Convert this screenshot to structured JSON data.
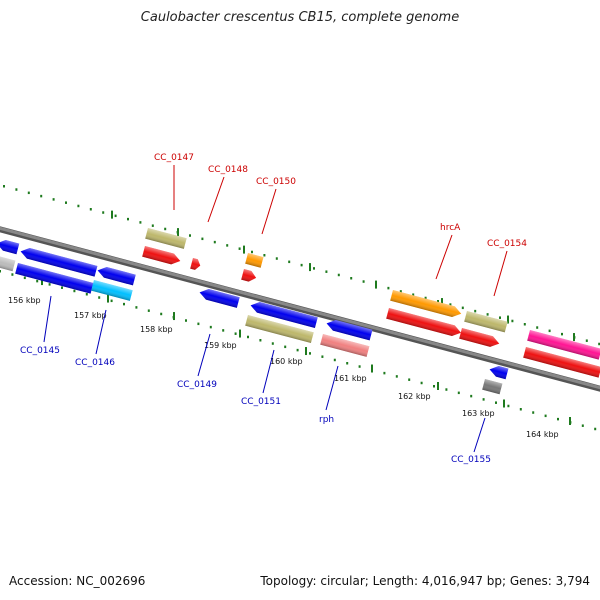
{
  "title": "Caulobacter crescentus CB15, complete genome",
  "footer": {
    "accession": "Accession: NC_002696",
    "summary": "Topology: circular; Length: 4,016,947 bp; Genes: 3,794"
  },
  "colors": {
    "backbone": "#888888",
    "tick": "#1e7a1e",
    "forward_label": "#cc0000",
    "reverse_label": "#0000bb"
  },
  "scale_ticks": [
    {
      "label": "156 kbp",
      "kbp": 156
    },
    {
      "label": "157 kbp",
      "kbp": 157
    },
    {
      "label": "158 kbp",
      "kbp": 158
    },
    {
      "label": "159 kbp",
      "kbp": 159
    },
    {
      "label": "160 kbp",
      "kbp": 160
    },
    {
      "label": "161 kbp",
      "kbp": 161
    },
    {
      "label": "162 kbp",
      "kbp": 162
    },
    {
      "label": "163 kbp",
      "kbp": 163
    },
    {
      "label": "164 kbp",
      "kbp": 164
    }
  ],
  "gene_labels": [
    {
      "name": "CC_0145",
      "strand": "reverse"
    },
    {
      "name": "CC_0146",
      "strand": "reverse"
    },
    {
      "name": "CC_0147",
      "strand": "forward"
    },
    {
      "name": "CC_0148",
      "strand": "forward"
    },
    {
      "name": "CC_0149",
      "strand": "reverse"
    },
    {
      "name": "CC_0150",
      "strand": "forward"
    },
    {
      "name": "CC_0151",
      "strand": "reverse"
    },
    {
      "name": "rph",
      "strand": "reverse"
    },
    {
      "name": "hrcA",
      "strand": "forward"
    },
    {
      "name": "CC_0154",
      "strand": "forward"
    },
    {
      "name": "CC_0155",
      "strand": "reverse"
    }
  ],
  "features": [
    {
      "strand": "forward",
      "color": "#bdb76b",
      "shape": "box"
    },
    {
      "strand": "forward",
      "color": "#ee1111",
      "shape": "arrow"
    },
    {
      "strand": "forward",
      "color": "#ee1111",
      "shape": "arrow"
    },
    {
      "strand": "forward",
      "color": "#ff9900",
      "shape": "box"
    },
    {
      "strand": "forward",
      "color": "#ee1111",
      "shape": "arrow"
    },
    {
      "strand": "forward",
      "color": "#ff9900",
      "shape": "arrow"
    },
    {
      "strand": "forward",
      "color": "#ee1111",
      "shape": "arrow"
    },
    {
      "strand": "forward",
      "color": "#bdb76b",
      "shape": "box"
    },
    {
      "strand": "forward",
      "color": "#ee1111",
      "shape": "arrow"
    },
    {
      "strand": "forward",
      "color": "#ff1493",
      "shape": "box"
    },
    {
      "strand": "forward",
      "color": "#ee1111",
      "shape": "box"
    },
    {
      "strand": "reverse",
      "color": "#0000ee",
      "shape": "arrow"
    },
    {
      "strand": "reverse",
      "color": "#0000ee",
      "shape": "arrow"
    },
    {
      "strand": "reverse",
      "color": "#bbbbbb",
      "shape": "box"
    },
    {
      "strand": "reverse",
      "color": "#0000ee",
      "shape": "box"
    },
    {
      "strand": "reverse",
      "color": "#0000ee",
      "shape": "arrow"
    },
    {
      "strand": "reverse",
      "color": "#00bfff",
      "shape": "box"
    },
    {
      "strand": "reverse",
      "color": "#0000ee",
      "shape": "arrow"
    },
    {
      "strand": "reverse",
      "color": "#0000ee",
      "shape": "arrow"
    },
    {
      "strand": "reverse",
      "color": "#bdb76b",
      "shape": "box"
    },
    {
      "strand": "reverse",
      "color": "#0000ee",
      "shape": "arrow"
    },
    {
      "strand": "reverse",
      "color": "#f08080",
      "shape": "box"
    },
    {
      "strand": "reverse",
      "color": "#0000ee",
      "shape": "arrow"
    },
    {
      "strand": "reverse",
      "color": "#777777",
      "shape": "box"
    }
  ]
}
